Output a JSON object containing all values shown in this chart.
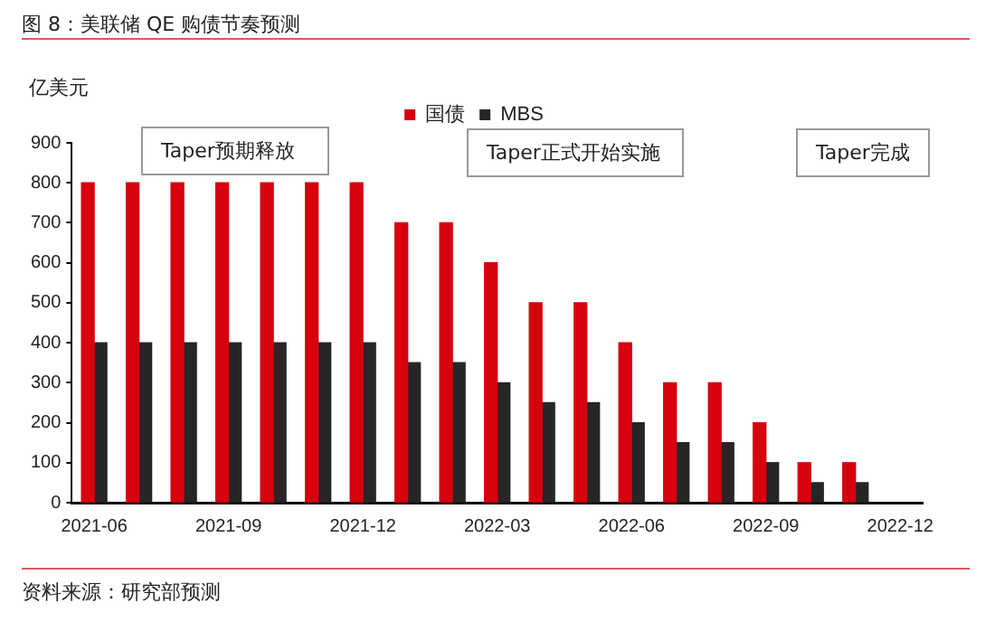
{
  "chart_data": {
    "type": "bar",
    "title": "图 8：美联储 QE 购债节奏预测",
    "ylabel": "亿美元",
    "categories": [
      "2021-06",
      null,
      null,
      "2021-09",
      null,
      null,
      "2021-12",
      null,
      null,
      "2022-03",
      null,
      null,
      "2022-06",
      null,
      null,
      "2022-09",
      null,
      null,
      "2022-12"
    ],
    "series": [
      {
        "name": "国债",
        "color": "#d7000f",
        "values": [
          800,
          800,
          800,
          800,
          800,
          800,
          800,
          700,
          700,
          600,
          500,
          500,
          400,
          300,
          300,
          200,
          100,
          100,
          null
        ]
      },
      {
        "name": "MBS",
        "color": "#262626",
        "values": [
          400,
          400,
          400,
          400,
          400,
          400,
          400,
          350,
          350,
          300,
          250,
          250,
          200,
          150,
          150,
          100,
          50,
          50,
          null
        ]
      }
    ],
    "ylim": [
      0,
      900
    ],
    "yticks": [
      0,
      100,
      200,
      300,
      400,
      500,
      600,
      700,
      800,
      900
    ],
    "grid": false,
    "legend": "top",
    "annotations": [
      "Taper预期释放",
      "Taper正式开始实施",
      "Taper完成",
      "资料来源：研究部预测"
    ]
  }
}
